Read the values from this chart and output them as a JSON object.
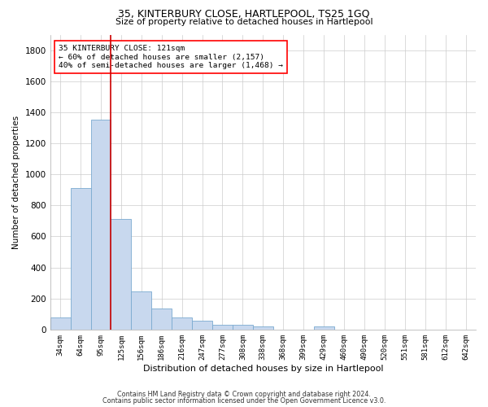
{
  "title": "35, KINTERBURY CLOSE, HARTLEPOOL, TS25 1GQ",
  "subtitle": "Size of property relative to detached houses in Hartlepool",
  "xlabel": "Distribution of detached houses by size in Hartlepool",
  "ylabel": "Number of detached properties",
  "bar_color": "#c8d8ee",
  "bar_edge_color": "#7aaad0",
  "vline_color": "#cc0000",
  "vline_x_idx": 3,
  "categories": [
    "34sqm",
    "64sqm",
    "95sqm",
    "125sqm",
    "156sqm",
    "186sqm",
    "216sqm",
    "247sqm",
    "277sqm",
    "308sqm",
    "338sqm",
    "368sqm",
    "399sqm",
    "429sqm",
    "460sqm",
    "490sqm",
    "520sqm",
    "551sqm",
    "581sqm",
    "612sqm",
    "642sqm"
  ],
  "values": [
    80,
    910,
    1350,
    710,
    248,
    135,
    80,
    55,
    30,
    30,
    18,
    0,
    0,
    20,
    0,
    0,
    0,
    0,
    0,
    0,
    0
  ],
  "ylim": [
    0,
    1900
  ],
  "yticks": [
    0,
    200,
    400,
    600,
    800,
    1000,
    1200,
    1400,
    1600,
    1800
  ],
  "annotation_text": "35 KINTERBURY CLOSE: 121sqm\n← 60% of detached houses are smaller (2,157)\n40% of semi-detached houses are larger (1,468) →",
  "footer1": "Contains HM Land Registry data © Crown copyright and database right 2024.",
  "footer2": "Contains public sector information licensed under the Open Government Licence v3.0.",
  "background_color": "#ffffff",
  "grid_color": "#cccccc"
}
